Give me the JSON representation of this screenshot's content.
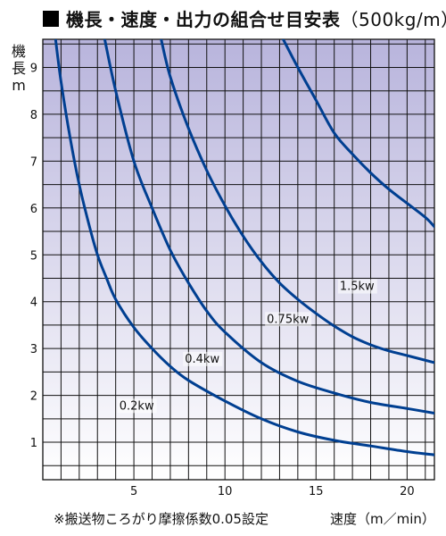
{
  "title": {
    "main": "機長・速度・出力の組合せ目安表",
    "sub": "（500kg/m）"
  },
  "ylabel_chars": [
    "機",
    "長",
    "m"
  ],
  "xlabel": "速度（m／min）",
  "footnote": "※搬送物ころがり摩擦係数0.05設定",
  "chart_data": {
    "type": "line",
    "title": "機長・速度・出力の組合せ目安表（500kg/m）",
    "xlabel": "速度（m／min）",
    "ylabel": "機長 m",
    "xlim": [
      0,
      21.5
    ],
    "ylim": [
      0.2,
      9.6
    ],
    "xticks": [
      5,
      10,
      15,
      20
    ],
    "yticks": [
      1,
      2,
      3,
      4,
      5,
      6,
      7,
      8,
      9
    ],
    "grid": true,
    "background_gradient": [
      "#b8b4dc",
      "#ffffff"
    ],
    "line_color": "#003f91",
    "series": [
      {
        "name": "0.2kw",
        "label_at": [
          4.2,
          1.7
        ],
        "x": [
          0.7,
          1.0,
          1.5,
          2.0,
          2.5,
          3.0,
          3.5,
          4.0,
          5.0,
          6.0,
          7.0,
          8.0,
          10.0,
          12.0,
          14.0,
          16.0,
          18.0,
          20.0,
          21.5
        ],
        "y": [
          9.6,
          8.7,
          7.5,
          6.5,
          5.7,
          5.0,
          4.5,
          4.05,
          3.45,
          3.0,
          2.62,
          2.32,
          1.88,
          1.5,
          1.22,
          1.04,
          0.92,
          0.8,
          0.73
        ]
      },
      {
        "name": "0.4kw",
        "label_at": [
          7.8,
          2.7
        ],
        "x": [
          3.4,
          4.0,
          5.0,
          6.0,
          7.0,
          8.0,
          9.0,
          10.0,
          12.0,
          14.0,
          16.0,
          18.0,
          20.0,
          21.5
        ],
        "y": [
          9.6,
          8.5,
          7.0,
          6.0,
          5.1,
          4.4,
          3.8,
          3.35,
          2.7,
          2.3,
          2.05,
          1.85,
          1.72,
          1.62
        ]
      },
      {
        "name": "0.75kw",
        "label_at": [
          12.3,
          3.55
        ],
        "x": [
          6.5,
          7.0,
          8.0,
          9.0,
          10.0,
          11.0,
          12.0,
          13.0,
          14.0,
          15.0,
          16.0,
          17.0,
          18.0,
          19.0,
          20.0,
          21.5
        ],
        "y": [
          9.6,
          8.8,
          7.7,
          6.8,
          6.05,
          5.4,
          4.85,
          4.4,
          4.05,
          3.75,
          3.48,
          3.25,
          3.08,
          2.95,
          2.85,
          2.7
        ]
      },
      {
        "name": "1.5kw",
        "label_at": [
          16.3,
          4.25
        ],
        "x": [
          13.2,
          14.0,
          15.0,
          16.0,
          17.0,
          18.0,
          19.0,
          20.0,
          21.0,
          21.5
        ],
        "y": [
          9.6,
          9.0,
          8.3,
          7.6,
          7.15,
          6.75,
          6.4,
          6.1,
          5.8,
          5.6
        ]
      }
    ]
  }
}
